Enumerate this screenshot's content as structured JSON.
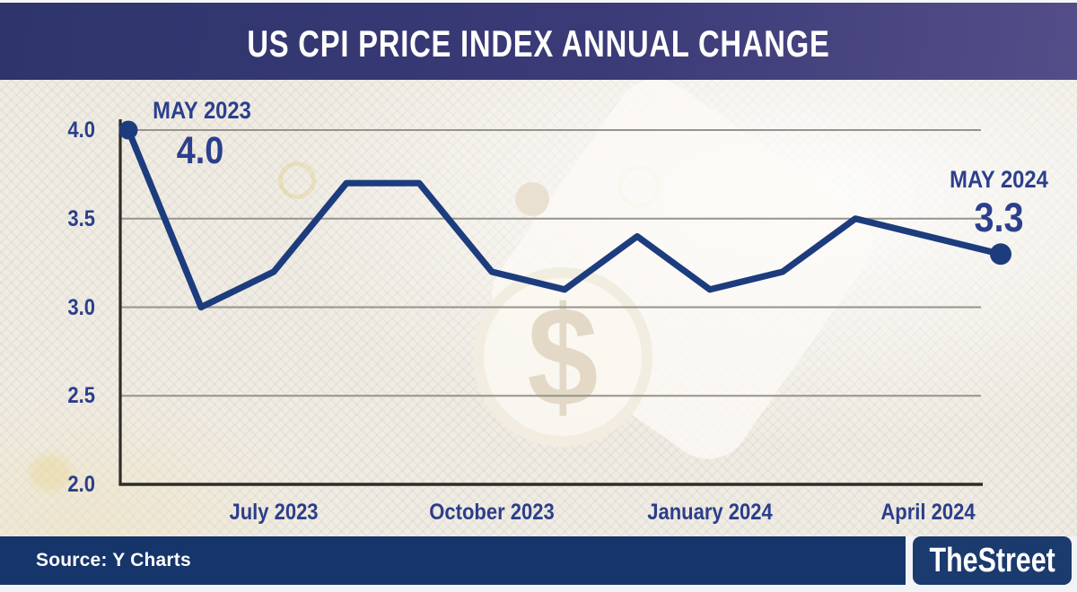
{
  "header": {
    "title": "US CPI PRICE INDEX ANNUAL CHANGE"
  },
  "watermark": {
    "symbol": "$"
  },
  "chart_data": {
    "type": "line",
    "title": "US CPI PRICE INDEX ANNUAL CHANGE",
    "series_name": "US CPI price index annual change (%)",
    "x": [
      "May 2023",
      "Jun 2023",
      "Jul 2023",
      "Aug 2023",
      "Sep 2023",
      "Oct 2023",
      "Nov 2023",
      "Dec 2023",
      "Jan 2024",
      "Feb 2024",
      "Mar 2024",
      "Apr 2024",
      "May 2024"
    ],
    "values": [
      4.0,
      3.0,
      3.2,
      3.7,
      3.7,
      3.2,
      3.1,
      3.4,
      3.1,
      3.2,
      3.5,
      3.4,
      3.3
    ],
    "xlabel": "",
    "ylabel": "",
    "ylim": [
      2.0,
      4.0
    ],
    "grid": "horizontal",
    "legend": "none",
    "line_color": "#1c3c7e",
    "grid_color": "#95938c",
    "axis_color": "#2e2c29",
    "tick_color": "#2b3e8a",
    "y_ticks": [
      {
        "label": "4.0",
        "value": 4.0
      },
      {
        "label": "3.5",
        "value": 3.5
      },
      {
        "label": "3.0",
        "value": 3.0
      },
      {
        "label": "2.5",
        "value": 2.5
      },
      {
        "label": "2.0",
        "value": 2.0
      }
    ],
    "x_ticks": [
      {
        "label": "July 2023",
        "index": 2
      },
      {
        "label": "October 2023",
        "index": 5
      },
      {
        "label": "January 2024",
        "index": 8
      },
      {
        "label": "April 2024",
        "index": 11
      }
    ],
    "start_annotation": {
      "label": "MAY 2023",
      "value": "4.0"
    },
    "end_annotation": {
      "label": "MAY 2024",
      "value": "3.3"
    }
  },
  "footer": {
    "source": "Source: Y Charts",
    "logo": "TheStreet"
  }
}
